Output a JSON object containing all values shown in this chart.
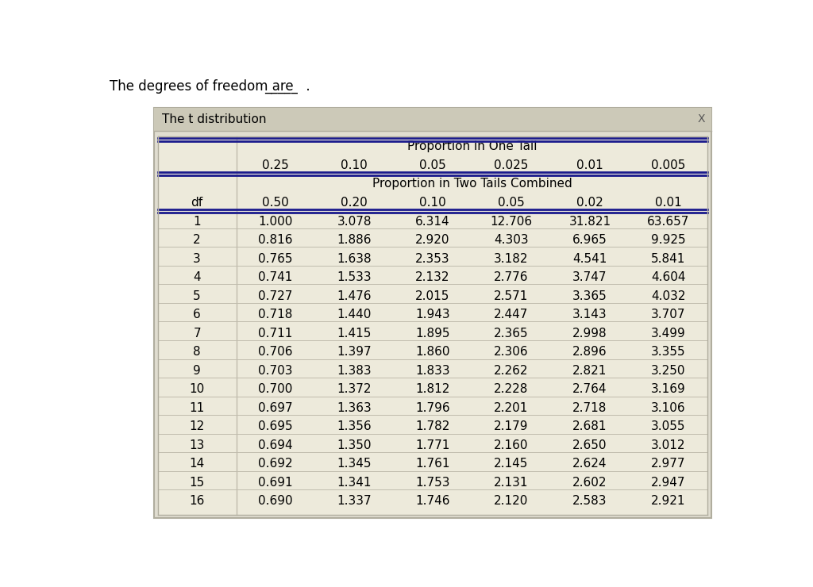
{
  "title_text": "The degrees of freedom are _____ .",
  "window_title": "The t distribution",
  "window_x_label": "X",
  "header1_label": "Proportion in One Tail",
  "one_tail_values": [
    "0.25",
    "0.10",
    "0.05",
    "0.025",
    "0.01",
    "0.005"
  ],
  "header2_label": "Proportion in Two Tails Combined",
  "two_tail_values": [
    "0.50",
    "0.20",
    "0.10",
    "0.05",
    "0.02",
    "0.01"
  ],
  "df_label": "df",
  "df_values": [
    1,
    2,
    3,
    4,
    5,
    6,
    7,
    8,
    9,
    10,
    11,
    12,
    13,
    14,
    15,
    16
  ],
  "table_data": [
    [
      "1.000",
      "3.078",
      "6.314",
      "12.706",
      "31.821",
      "63.657"
    ],
    [
      "0.816",
      "1.886",
      "2.920",
      "4.303",
      "6.965",
      "9.925"
    ],
    [
      "0.765",
      "1.638",
      "2.353",
      "3.182",
      "4.541",
      "5.841"
    ],
    [
      "0.741",
      "1.533",
      "2.132",
      "2.776",
      "3.747",
      "4.604"
    ],
    [
      "0.727",
      "1.476",
      "2.015",
      "2.571",
      "3.365",
      "4.032"
    ],
    [
      "0.718",
      "1.440",
      "1.943",
      "2.447",
      "3.143",
      "3.707"
    ],
    [
      "0.711",
      "1.415",
      "1.895",
      "2.365",
      "2.998",
      "3.499"
    ],
    [
      "0.706",
      "1.397",
      "1.860",
      "2.306",
      "2.896",
      "3.355"
    ],
    [
      "0.703",
      "1.383",
      "1.833",
      "2.262",
      "2.821",
      "3.250"
    ],
    [
      "0.700",
      "1.372",
      "1.812",
      "2.228",
      "2.764",
      "3.169"
    ],
    [
      "0.697",
      "1.363",
      "1.796",
      "2.201",
      "2.718",
      "3.106"
    ],
    [
      "0.695",
      "1.356",
      "1.782",
      "2.179",
      "2.681",
      "3.055"
    ],
    [
      "0.694",
      "1.350",
      "1.771",
      "2.160",
      "2.650",
      "3.012"
    ],
    [
      "0.692",
      "1.345",
      "1.761",
      "2.145",
      "2.624",
      "2.977"
    ],
    [
      "0.691",
      "1.341",
      "1.753",
      "2.131",
      "2.602",
      "2.947"
    ],
    [
      "0.690",
      "1.337",
      "1.746",
      "2.120",
      "2.583",
      "2.921"
    ]
  ],
  "bg_color": "#edeadb",
  "window_bg": "#e0ddd0",
  "outer_bg": "#ffffff",
  "border_color": "#b0ad9e",
  "dark_line_color": "#1a1a8c",
  "light_line_color": "#c0bcad",
  "text_color": "#000000",
  "font_size": 11,
  "header_font_size": 11
}
